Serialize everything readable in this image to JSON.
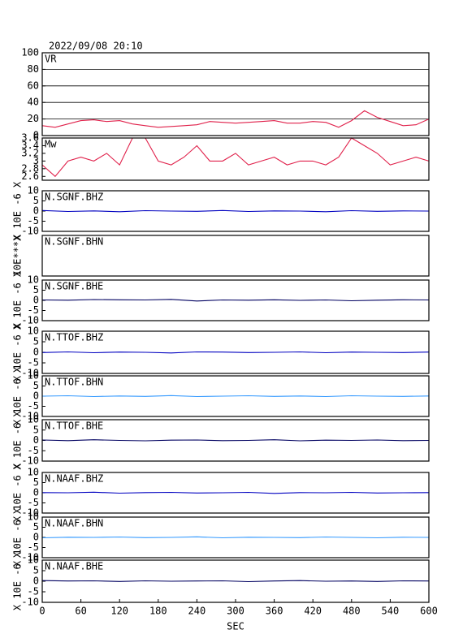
{
  "chart_data": [
    {
      "type": "line",
      "title": "2022/09/08 20:10",
      "label": "VR",
      "xlim": [
        0,
        600
      ],
      "ylim": [
        0,
        100
      ],
      "yticks": [
        0,
        20,
        40,
        60,
        80,
        100
      ],
      "grid": true,
      "x": [
        0,
        20,
        40,
        60,
        80,
        100,
        120,
        140,
        160,
        180,
        200,
        220,
        240,
        260,
        280,
        300,
        320,
        340,
        360,
        380,
        400,
        420,
        440,
        460,
        480,
        500,
        520,
        540,
        560,
        580,
        600
      ],
      "series": [
        {
          "name": "VR",
          "color": "#e0204a",
          "values": [
            12,
            10,
            14,
            18,
            19,
            17,
            18,
            14,
            12,
            10,
            11,
            12,
            13,
            17,
            16,
            15,
            16,
            17,
            18,
            15,
            15,
            17,
            16,
            10,
            18,
            30,
            22,
            17,
            12,
            13,
            20
          ]
        }
      ]
    },
    {
      "type": "line",
      "label": "Mw",
      "xlim": [
        0,
        600
      ],
      "ylim": [
        2.5,
        3.6
      ],
      "yticks": [
        2.6,
        2.8,
        3.0,
        3.2,
        3.4,
        3.6
      ],
      "grid": false,
      "x": [
        0,
        20,
        40,
        60,
        80,
        100,
        120,
        140,
        160,
        180,
        200,
        220,
        240,
        260,
        280,
        300,
        320,
        340,
        360,
        380,
        400,
        420,
        440,
        460,
        480,
        500,
        520,
        540,
        560,
        580,
        600
      ],
      "series": [
        {
          "name": "Mw",
          "color": "#e0204a",
          "values": [
            2.9,
            2.6,
            3.0,
            3.1,
            3.0,
            3.2,
            2.9,
            3.6,
            3.6,
            3.0,
            2.9,
            3.1,
            3.4,
            3.0,
            3.0,
            3.2,
            2.9,
            3.0,
            3.1,
            2.9,
            3.0,
            3.0,
            2.9,
            3.1,
            3.6,
            3.4,
            3.2,
            2.9,
            3.0,
            3.1,
            3.0
          ]
        }
      ]
    },
    {
      "type": "line",
      "label": "N.SGNF.BHZ",
      "ylabel": "X 10E -6 X",
      "xlim": [
        0,
        600
      ],
      "ylim": [
        -10,
        10
      ],
      "yticks": [
        -10,
        -5,
        0,
        5,
        10
      ],
      "x": [
        0,
        40,
        80,
        120,
        160,
        200,
        240,
        280,
        320,
        360,
        400,
        440,
        480,
        520,
        560,
        600
      ],
      "series": [
        {
          "name": "N.SGNF.BHZ",
          "color": "#0000c0",
          "values": [
            0.3,
            -0.2,
            0.1,
            -0.3,
            0.2,
            0,
            -0.1,
            0.3,
            -0.2,
            0.1,
            0,
            -0.3,
            0.2,
            -0.1,
            0.1,
            0
          ]
        }
      ]
    },
    {
      "type": "line",
      "label": "N.SGNF.BHN",
      "ylabel": "10E***X",
      "xlim": [
        0,
        600
      ],
      "series": []
    },
    {
      "type": "line",
      "label": "N.SGNF.BHE",
      "ylabel": "X 10E -6 X",
      "xlim": [
        0,
        600
      ],
      "ylim": [
        -10,
        10
      ],
      "yticks": [
        -10,
        -5,
        0,
        5,
        10
      ],
      "x": [
        0,
        40,
        80,
        120,
        160,
        200,
        240,
        280,
        320,
        360,
        400,
        440,
        480,
        520,
        560,
        600
      ],
      "series": [
        {
          "name": "N.SGNF.BHE",
          "color": "#000060",
          "values": [
            0.2,
            0.1,
            0.4,
            0.3,
            0.2,
            0.5,
            -0.3,
            0.2,
            0.1,
            0.3,
            0,
            0.2,
            -0.2,
            0.1,
            0.3,
            0.2
          ]
        }
      ]
    },
    {
      "type": "line",
      "label": "N.TTOF.BHZ",
      "ylabel": "X 10E -6 X",
      "xlim": [
        0,
        600
      ],
      "ylim": [
        -10,
        10
      ],
      "yticks": [
        -10,
        -5,
        0,
        5,
        10
      ],
      "x": [
        0,
        40,
        80,
        120,
        160,
        200,
        240,
        280,
        320,
        360,
        400,
        440,
        480,
        520,
        560,
        600
      ],
      "series": [
        {
          "name": "N.TTOF.BHZ",
          "color": "#0000c0",
          "values": [
            -0.1,
            0.2,
            -0.2,
            0.1,
            0,
            -0.3,
            0.2,
            0.1,
            -0.1,
            0,
            0.2,
            -0.2,
            0.1,
            0,
            -0.1,
            0.1
          ]
        }
      ]
    },
    {
      "type": "line",
      "label": "N.TTOF.BHN",
      "ylabel": "X 10E -6 X",
      "xlim": [
        0,
        600
      ],
      "ylim": [
        -10,
        10
      ],
      "yticks": [
        -10,
        -5,
        0,
        5,
        10
      ],
      "x": [
        0,
        40,
        80,
        120,
        160,
        200,
        240,
        280,
        320,
        360,
        400,
        440,
        480,
        520,
        560,
        600
      ],
      "series": [
        {
          "name": "N.TTOF.BHN",
          "color": "#3399ff",
          "values": [
            0,
            0.2,
            -0.2,
            0.1,
            -0.1,
            0.3,
            -0.2,
            0,
            0.2,
            -0.1,
            0.1,
            -0.2,
            0.2,
            0,
            -0.1,
            0.1
          ]
        }
      ]
    },
    {
      "type": "line",
      "label": "N.TTOF.BHE",
      "ylabel": "X 10E -6 X",
      "xlim": [
        0,
        600
      ],
      "ylim": [
        -10,
        10
      ],
      "yticks": [
        -10,
        -5,
        0,
        5,
        10
      ],
      "x": [
        0,
        40,
        80,
        120,
        160,
        200,
        240,
        280,
        320,
        360,
        400,
        440,
        480,
        520,
        560,
        600
      ],
      "series": [
        {
          "name": "N.TTOF.BHE",
          "color": "#000060",
          "values": [
            0.2,
            -0.1,
            0.3,
            0,
            -0.2,
            0.1,
            0.2,
            -0.1,
            0,
            0.3,
            -0.2,
            0.1,
            0,
            0.2,
            -0.1,
            0
          ]
        }
      ]
    },
    {
      "type": "line",
      "label": "N.NAAF.BHZ",
      "ylabel": "X 10E -6 X",
      "xlim": [
        0,
        600
      ],
      "ylim": [
        -10,
        10
      ],
      "yticks": [
        -10,
        -5,
        0,
        5,
        10
      ],
      "x": [
        0,
        40,
        80,
        120,
        160,
        200,
        240,
        280,
        320,
        360,
        400,
        440,
        480,
        520,
        560,
        600
      ],
      "series": [
        {
          "name": "N.NAAF.BHZ",
          "color": "#0000c0",
          "values": [
            0.1,
            0,
            0.3,
            -0.2,
            0.1,
            0.2,
            -0.1,
            0,
            0.2,
            -0.3,
            0.1,
            0,
            0.2,
            -0.1,
            0,
            0.1
          ]
        }
      ]
    },
    {
      "type": "line",
      "label": "N.NAAF.BHN",
      "ylabel": "X 10E -6 X",
      "xlim": [
        0,
        600
      ],
      "ylim": [
        -10,
        10
      ],
      "yticks": [
        -10,
        -5,
        0,
        5,
        10
      ],
      "x": [
        0,
        40,
        80,
        120,
        160,
        200,
        240,
        280,
        320,
        360,
        400,
        440,
        480,
        520,
        560,
        600
      ],
      "series": [
        {
          "name": "N.NAAF.BHN",
          "color": "#3399ff",
          "values": [
            -0.2,
            0.1,
            0,
            0.2,
            -0.1,
            0,
            0.3,
            -0.2,
            0.1,
            0,
            -0.1,
            0.2,
            0,
            -0.2,
            0.1,
            0
          ]
        }
      ]
    },
    {
      "type": "line",
      "label": "N.NAAF.BHE",
      "ylabel": "X 10E -6 X",
      "xlabel": "SEC",
      "xlim": [
        0,
        600
      ],
      "xticks": [
        0,
        60,
        120,
        180,
        240,
        300,
        360,
        420,
        480,
        540,
        600
      ],
      "ylim": [
        -10,
        10
      ],
      "yticks": [
        -10,
        -5,
        0,
        5,
        10
      ],
      "x": [
        0,
        40,
        80,
        120,
        160,
        200,
        240,
        280,
        320,
        360,
        400,
        440,
        480,
        520,
        560,
        600
      ],
      "series": [
        {
          "name": "N.NAAF.BHE",
          "color": "#000060",
          "values": [
            0.3,
            0.1,
            0.2,
            -0.1,
            0.2,
            0,
            0.1,
            0.2,
            -0.2,
            0.1,
            0.3,
            0,
            0.1,
            -0.1,
            0.2,
            0.1
          ]
        }
      ]
    }
  ]
}
